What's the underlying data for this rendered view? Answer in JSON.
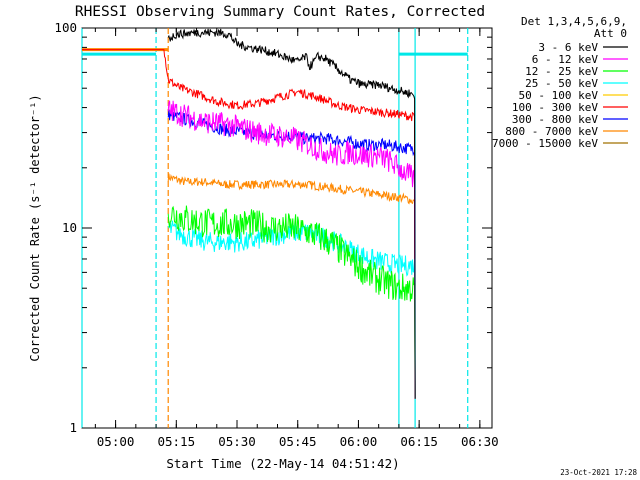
{
  "chart_data": {
    "type": "line",
    "title": "RHESSI Observing Summary Count Rates, Corrected",
    "xlabel": "Start Time (22-May-14 04:51:42)",
    "ylabel": "Corrected Count Rate (s⁻¹ detector⁻¹)",
    "y_scale": "log",
    "ylim": [
      1,
      100
    ],
    "xlim": [
      "04:51:42",
      "06:33:00"
    ],
    "x_ticks": [
      "05:00",
      "05:15",
      "05:30",
      "05:45",
      "06:00",
      "06:15",
      "06:30"
    ],
    "y_ticks": [
      "1",
      "10",
      "100"
    ],
    "grid": false,
    "legend": {
      "placement": "top-right-outside",
      "header_line1": "Det 1,3,4,5,6,9,",
      "header_line2": "Att 0"
    },
    "footer_date": "23-Oct-2021 17:28",
    "series": [
      {
        "name": "3 - 6 keV",
        "color": "#000000",
        "x": [
          "05:13",
          "05:15",
          "05:20",
          "05:25",
          "05:28",
          "05:30",
          "05:33",
          "05:36",
          "05:40",
          "05:43",
          "05:45",
          "05:47",
          "05:48",
          "05:50",
          "05:52",
          "05:55",
          "05:58",
          "06:01",
          "06:05",
          "06:08",
          "06:11",
          "06:13",
          "06:14"
        ],
        "y": [
          88,
          93,
          95,
          95,
          93,
          83,
          80,
          78,
          74,
          70,
          68,
          72,
          64,
          72,
          70,
          62,
          55,
          52,
          52,
          50,
          48,
          47,
          46
        ]
      },
      {
        "name": "6 - 12 keV",
        "color": "#ff00ff",
        "x": [
          "05:13",
          "05:18",
          "05:22",
          "05:27",
          "05:30",
          "05:35",
          "05:40",
          "05:44",
          "05:48",
          "05:52",
          "05:55",
          "05:58",
          "06:01",
          "06:04",
          "06:07",
          "06:10",
          "06:13",
          "06:14"
        ],
        "y": [
          39,
          36,
          34,
          33,
          32,
          30,
          29,
          28,
          26,
          24,
          23,
          24,
          23,
          23,
          22,
          20,
          18,
          17
        ]
      },
      {
        "name": "12 - 25 keV",
        "color": "#00ff00",
        "x": [
          "05:13",
          "05:18",
          "05:23",
          "05:28",
          "05:33",
          "05:38",
          "05:43",
          "05:48",
          "05:53",
          "05:58",
          "06:03",
          "06:07",
          "06:10",
          "06:13",
          "06:14"
        ],
        "y": [
          12,
          11,
          10.5,
          10.5,
          10.5,
          10,
          10,
          9.5,
          8.5,
          7,
          5.8,
          5.3,
          5,
          5,
          4.8
        ]
      },
      {
        "name": "25 - 50 keV",
        "color": "#00ffff",
        "x": [
          "05:13",
          "05:18",
          "05:23",
          "05:28",
          "05:33",
          "05:38",
          "05:43",
          "05:48",
          "05:53",
          "05:58",
          "06:03",
          "06:07",
          "06:10",
          "06:13",
          "06:14"
        ],
        "y": [
          10,
          9,
          8.5,
          8.5,
          8.5,
          9,
          9.5,
          9.5,
          8.8,
          7.8,
          7,
          6.7,
          6.5,
          6.5,
          6.5
        ]
      },
      {
        "name": "50 - 100 keV",
        "color": "#ffcc00",
        "x": [],
        "y": []
      },
      {
        "name": "100 - 300 keV",
        "color": "#ff0000",
        "x": [
          "04:51:42",
          "05:12",
          "05:13",
          "05:16",
          "05:20",
          "05:25",
          "05:30",
          "05:35",
          "05:40",
          "05:45",
          "05:50",
          "05:55",
          "06:00",
          "06:05",
          "06:10",
          "06:13",
          "06:14"
        ],
        "y": [
          78,
          78,
          55,
          50,
          47,
          43,
          41,
          42,
          45,
          48,
          45,
          41,
          39,
          38,
          37,
          36,
          36
        ]
      },
      {
        "name": "300 - 800 keV",
        "color": "#0000ff",
        "x": [
          "05:13",
          "05:17",
          "05:22",
          "05:27",
          "05:32",
          "05:37",
          "05:42",
          "05:47",
          "05:52",
          "05:57",
          "06:02",
          "06:07",
          "06:12",
          "06:14"
        ],
        "y": [
          37,
          35,
          33,
          31,
          30,
          29,
          29,
          28,
          28,
          27,
          26,
          26,
          25,
          25
        ]
      },
      {
        "name": "800 - 7000 keV",
        "color": "#ff8800",
        "x": [
          "05:13",
          "05:17",
          "05:22",
          "05:27",
          "05:32",
          "05:37",
          "05:42",
          "05:47",
          "05:52",
          "05:57",
          "06:02",
          "06:07",
          "06:12",
          "06:14"
        ],
        "y": [
          18,
          17,
          17,
          16.5,
          16.5,
          16.5,
          16.5,
          16.5,
          16,
          15.5,
          15,
          14.5,
          14,
          13.5
        ]
      },
      {
        "name": "7000 - 15000 keV",
        "color": "#a07000",
        "x": [],
        "y": []
      }
    ]
  },
  "legend_colors": {
    "3 - 6 keV": "#000000",
    "6 - 12 keV": "#ff00ff",
    "12 - 25 keV": "#00ff00",
    "25 - 50 keV": "#00ffff",
    "50 - 100 keV": "#ffcc00",
    "100 - 300 keV": "#ff0000",
    "300 - 800 keV": "#0000ff",
    "800 - 7000 keV": "#ff8800",
    "7000 - 15000 keV": "#a07000"
  },
  "markers": {
    "cyan_solid_lines": [
      "04:51:42",
      "06:10:00",
      "06:14:00"
    ],
    "cyan_dashed_lines": [
      "05:10:00",
      "06:27:00"
    ],
    "orange_dashed_lines": [
      "05:13:00"
    ],
    "cyan_segments": [
      {
        "x0": "04:51:42",
        "x1": "05:10:00",
        "y": 74
      },
      {
        "x0": "06:10:00",
        "x1": "06:27:00",
        "y": 74
      }
    ],
    "orange_segments": [
      {
        "x0": "04:51:42",
        "x1": "05:13:00",
        "y": 78
      }
    ]
  }
}
